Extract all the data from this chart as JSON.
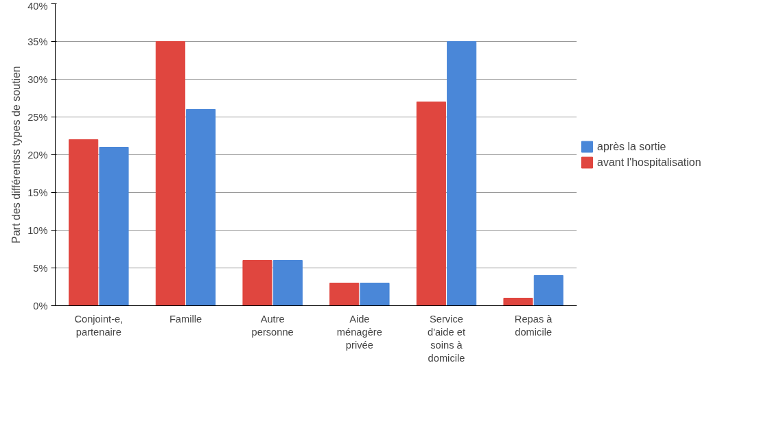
{
  "chart_data": {
    "type": "bar",
    "ylabel": "Part des différentss types de soutien",
    "categories": [
      "Conjoint-e,\npartenaire",
      "Famille",
      "Autre\npersonne",
      "Aide\nménagère\nprivée",
      "Service\nd'aide et\nsoins à\ndomicile",
      "Repas à\ndomicile"
    ],
    "series": [
      {
        "name": "avant l'hospitalisation",
        "color": "#e0463f",
        "values": [
          22,
          35,
          6,
          3,
          27,
          1
        ]
      },
      {
        "name": "après la sortie",
        "color": "#4a87d8",
        "values": [
          21,
          26,
          6,
          3,
          35,
          4
        ]
      }
    ],
    "ylim": [
      0,
      40
    ],
    "yticks": [
      {
        "value": 0,
        "label": "0%"
      },
      {
        "value": 5,
        "label": "5%"
      },
      {
        "value": 10,
        "label": "10%"
      },
      {
        "value": 15,
        "label": "15%"
      },
      {
        "value": 20,
        "label": "20%"
      },
      {
        "value": 25,
        "label": "25%"
      },
      {
        "value": 30,
        "label": "30%"
      },
      {
        "value": 35,
        "label": "35%"
      },
      {
        "value": 40,
        "label": "40%"
      }
    ],
    "grid": "y",
    "legend": "right"
  }
}
